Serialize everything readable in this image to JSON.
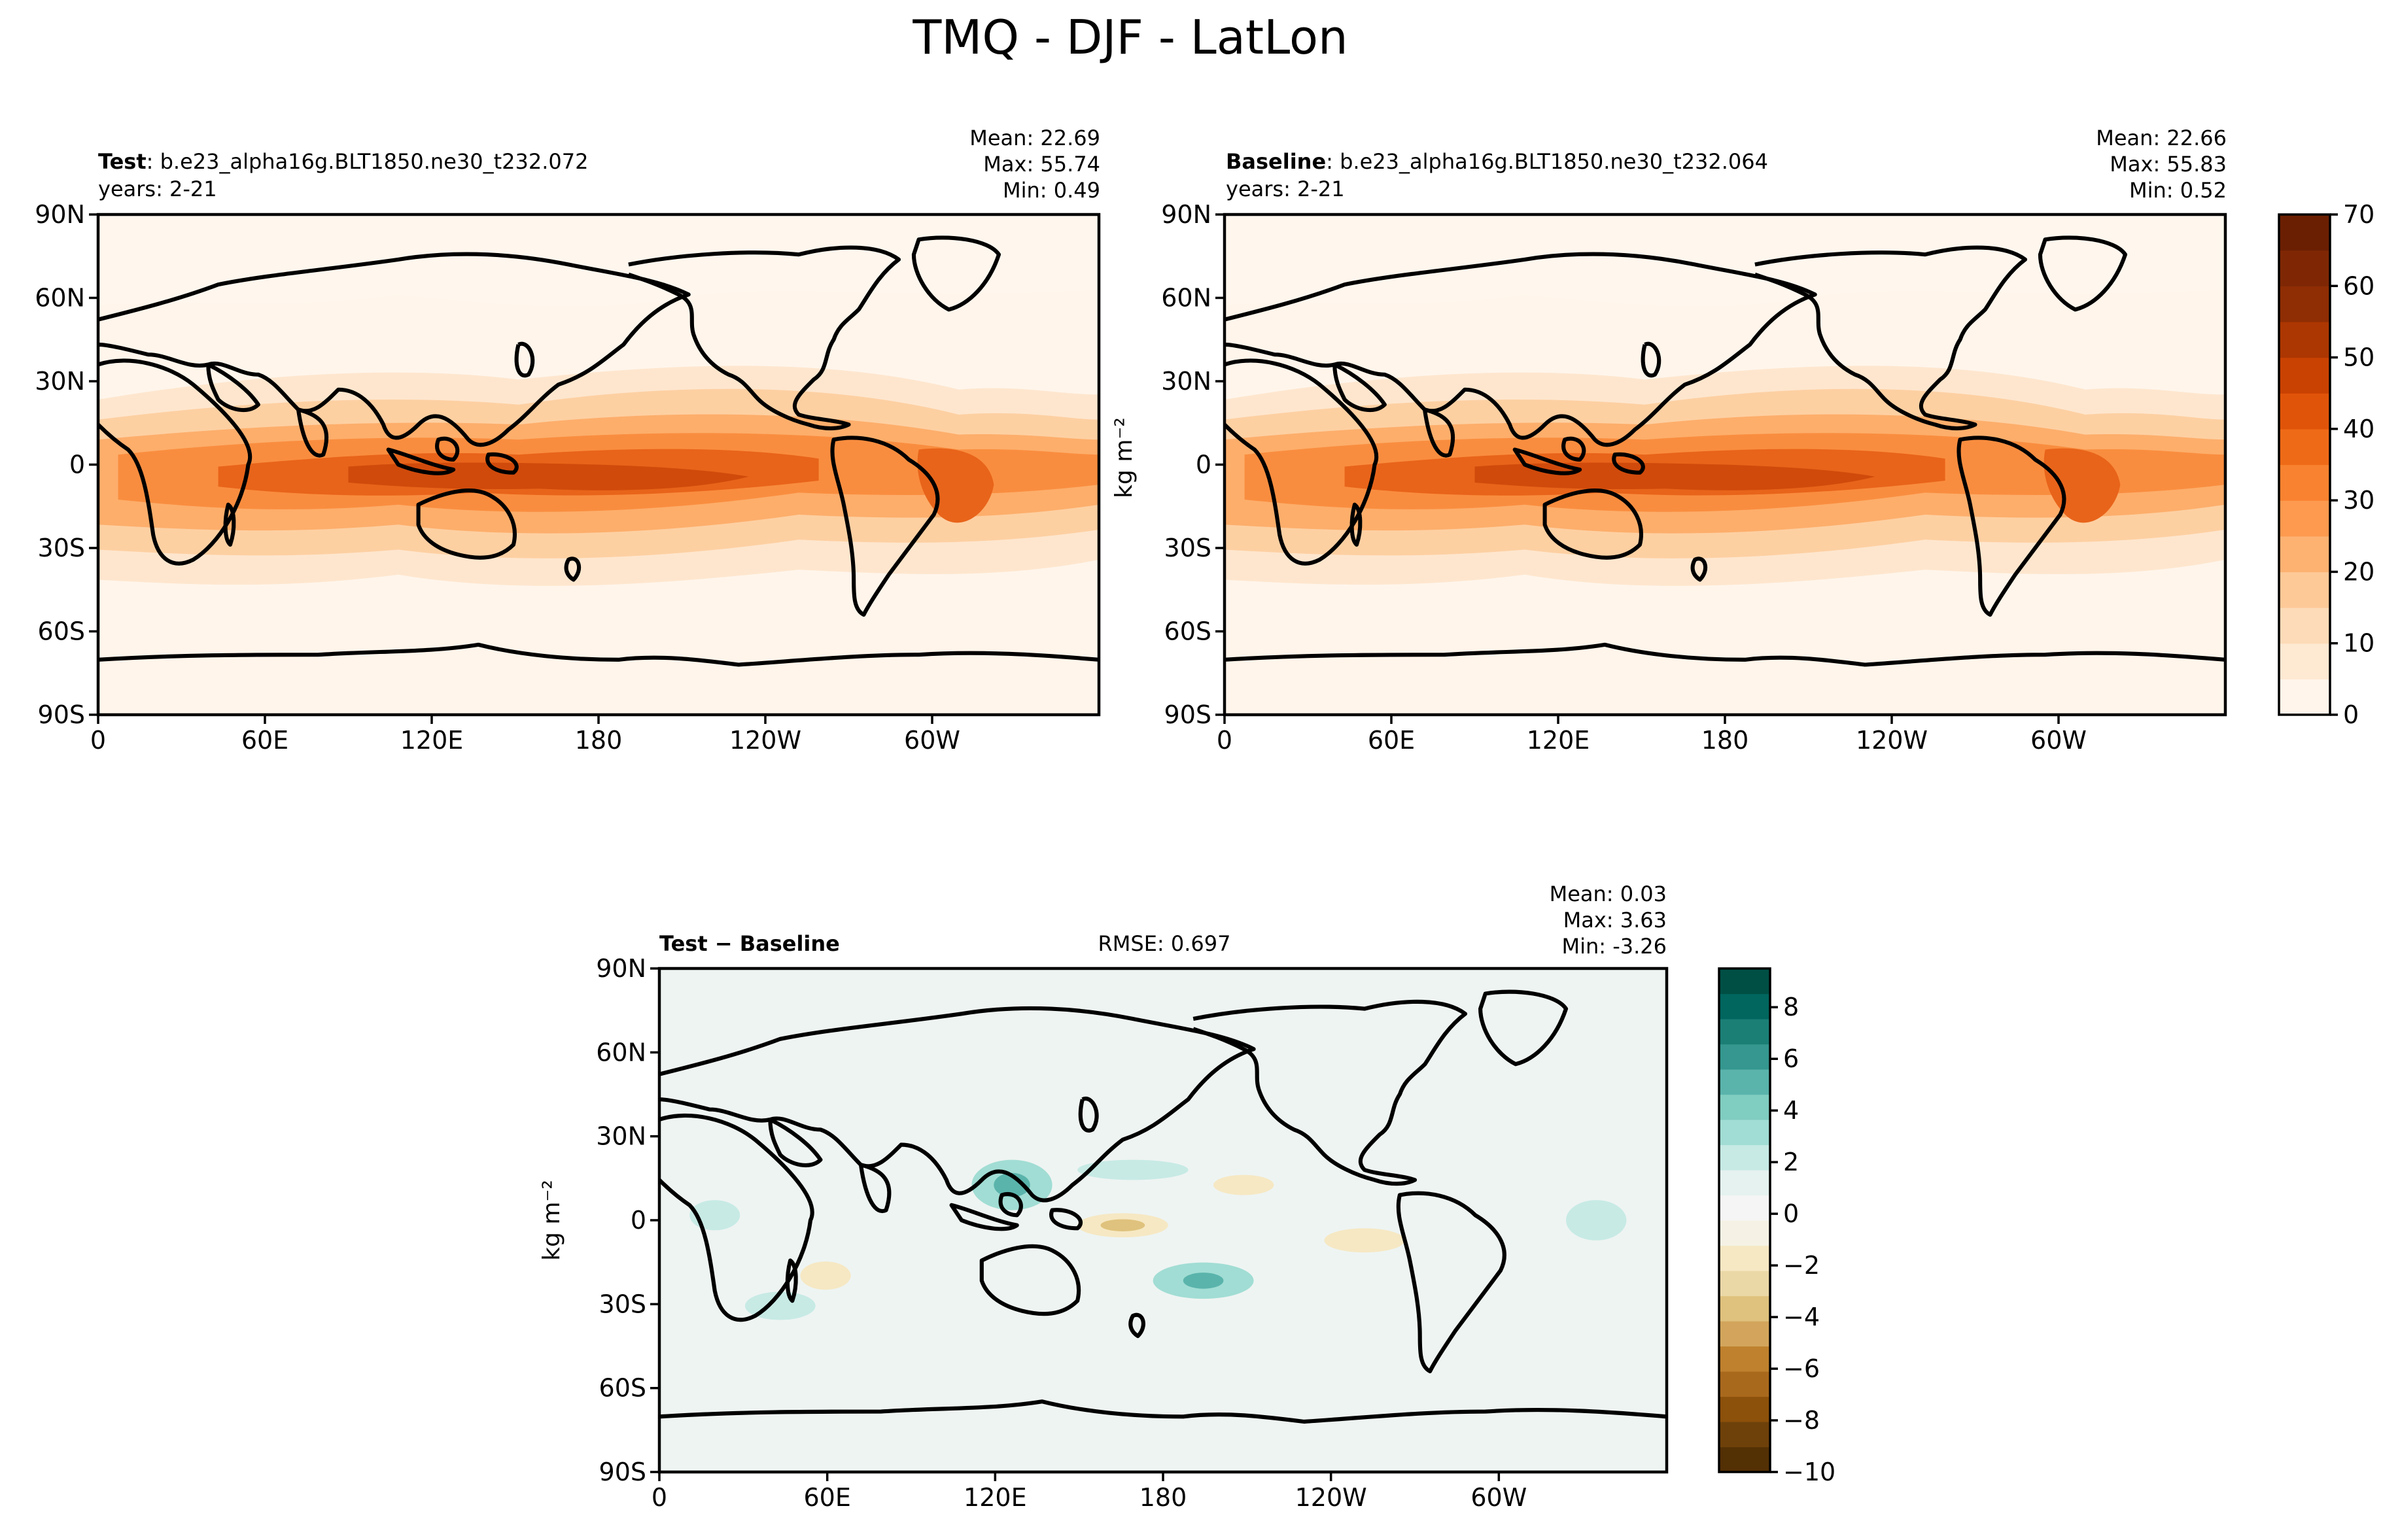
{
  "figure": {
    "title": "TMQ - DJF - LatLon"
  },
  "panels": {
    "test": {
      "label_bold": "Test",
      "case": ": b.e23_alpha16g.BLT1850.ne30_t232.072",
      "years": "years: 2-21",
      "mean": "Mean: 22.69",
      "max": "Max: 55.74",
      "min": "Min:  0.49"
    },
    "baseline": {
      "label_bold": "Baseline",
      "case": ": b.e23_alpha16g.BLT1850.ne30_t232.064",
      "years": "years: 2-21",
      "mean": "Mean: 22.66",
      "max": "Max: 55.83",
      "min": "Min:  0.52"
    },
    "diff": {
      "label_bold": "Test − Baseline",
      "rmse": "RMSE: 0.697",
      "mean": "Mean:  0.03",
      "max": "Max:  3.63",
      "min": "Min: -3.26"
    }
  },
  "colorbars": {
    "top": {
      "unit": "kg m⁻²",
      "ticks": [
        "70",
        "60",
        "50",
        "40",
        "30",
        "20",
        "10",
        "0"
      ],
      "colors": [
        "#fff5eb",
        "#fee9d3",
        "#fddbb8",
        "#fdc997",
        "#fdb272",
        "#fd9a4f",
        "#f98230",
        "#ef6a17",
        "#e05409",
        "#c94202",
        "#ad3702",
        "#8f2d04",
        "#7f2704",
        "#6b1f02"
      ]
    },
    "diff": {
      "unit": "kg m⁻²",
      "ticks": [
        "8",
        "6",
        "4",
        "2",
        "0",
        "−2",
        "−4",
        "−6",
        "−8",
        "−10"
      ],
      "colors": [
        "#543005",
        "#6e410a",
        "#8c510a",
        "#a9691d",
        "#bf812d",
        "#d3a55c",
        "#dfc27d",
        "#ebd8a7",
        "#f6e8c3",
        "#f5f2e5",
        "#f5f5f5",
        "#e5f2ef",
        "#c7eae5",
        "#a1ddd4",
        "#80cdc1",
        "#5ab4ac",
        "#35978f",
        "#1b7f76",
        "#01665e",
        "#004f45"
      ]
    }
  },
  "axes": {
    "lat_ticks": [
      "90N",
      "60N",
      "30N",
      "0",
      "30S",
      "60S",
      "90S"
    ],
    "lon_ticks": [
      "0",
      "60E",
      "120E",
      "180",
      "120W",
      "60W"
    ]
  },
  "chart_data": [
    {
      "type": "heatmap",
      "title": "Test: b.e23_alpha16g.BLT1850.ne30_t232.072",
      "variable": "TMQ",
      "season": "DJF",
      "unit": "kg m-2",
      "x_range": [
        0,
        360
      ],
      "y_range": [
        -90,
        90
      ],
      "color_range": [
        0,
        70
      ],
      "stats": {
        "mean": 22.69,
        "max": 55.74,
        "min": 0.49
      }
    },
    {
      "type": "heatmap",
      "title": "Baseline: b.e23_alpha16g.BLT1850.ne30_t232.064",
      "variable": "TMQ",
      "season": "DJF",
      "unit": "kg m-2",
      "x_range": [
        0,
        360
      ],
      "y_range": [
        -90,
        90
      ],
      "color_range": [
        0,
        70
      ],
      "stats": {
        "mean": 22.66,
        "max": 55.83,
        "min": 0.52
      }
    },
    {
      "type": "heatmap",
      "title": "Test - Baseline",
      "variable": "TMQ",
      "season": "DJF",
      "unit": "kg m-2",
      "x_range": [
        0,
        360
      ],
      "y_range": [
        -90,
        90
      ],
      "color_range": [
        -10,
        9
      ],
      "stats": {
        "mean": 0.03,
        "max": 3.63,
        "min": -3.26,
        "rmse": 0.697
      }
    }
  ]
}
